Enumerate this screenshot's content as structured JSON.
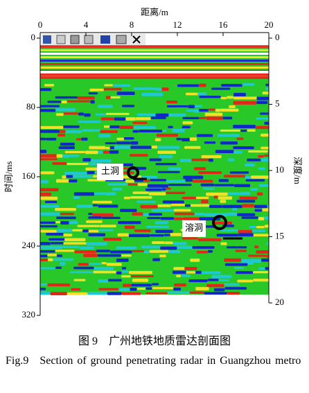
{
  "chart_data": {
    "type": "radargram",
    "xlabel": "距离/m",
    "ylabel": "时间/ms",
    "y2label": "深度/m",
    "xlim": [
      0,
      20
    ],
    "xticks": [
      0,
      4,
      8,
      12,
      16,
      20
    ],
    "ylim": [
      0,
      320
    ],
    "yticks": [
      0,
      80,
      160,
      240,
      320
    ],
    "y2lim": [
      0,
      20
    ],
    "y2ticks": [
      0,
      5,
      10,
      15,
      20
    ],
    "annotations": [
      "土洞",
      "溶洞"
    ]
  },
  "caption_cn": "图 9　广州地铁地质雷达剖面图",
  "caption_en": "Fig.9　Section of ground penetrating radar in Guangzhou metro"
}
